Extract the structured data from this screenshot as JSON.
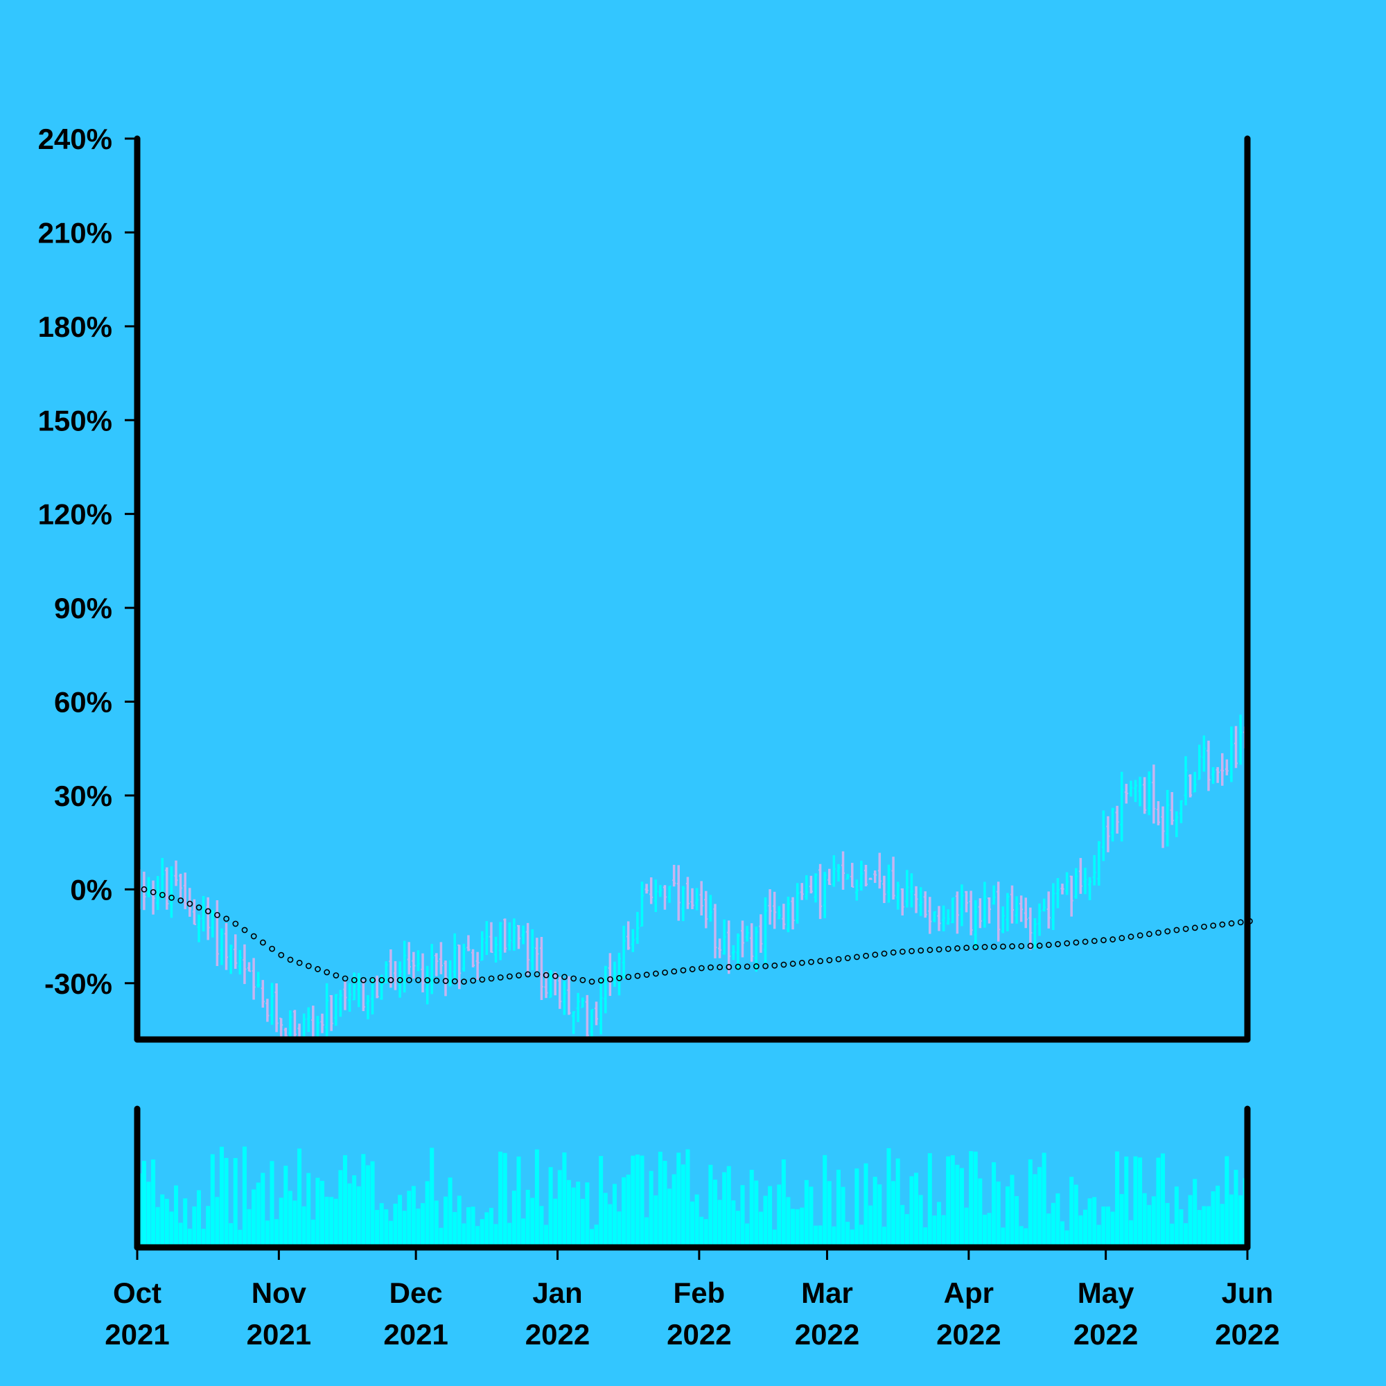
{
  "chart_data": {
    "type": "ohlc",
    "background_color": "#33c6ff",
    "border_color": "#000000",
    "up_color": "#00ffff",
    "down_color": "#c8b4f0",
    "volume_color": "#00ffff",
    "moving_average_color": "#000000",
    "y_axis": {
      "unit": "percent",
      "ylim": [
        -48,
        240
      ],
      "ticks": [
        -30,
        0,
        30,
        60,
        90,
        120,
        150,
        180,
        210,
        240
      ],
      "tick_labels": [
        "-30%",
        "0%",
        "30%",
        "60%",
        "90%",
        "120%",
        "150%",
        "180%",
        "210%",
        "240%"
      ]
    },
    "x_axis": {
      "range": [
        "2021-10-01",
        "2022-06-01"
      ],
      "ticks": [
        {
          "date": "2021-10-01",
          "month": "Oct",
          "year": "2021"
        },
        {
          "date": "2021-11-01",
          "month": "Nov",
          "year": "2021"
        },
        {
          "date": "2021-12-01",
          "month": "Dec",
          "year": "2021"
        },
        {
          "date": "2022-01-01",
          "month": "Jan",
          "year": "2022"
        },
        {
          "date": "2022-02-01",
          "month": "Feb",
          "year": "2022"
        },
        {
          "date": "2022-03-01",
          "month": "Mar",
          "year": "2022"
        },
        {
          "date": "2022-04-01",
          "month": "Apr",
          "year": "2022"
        },
        {
          "date": "2022-05-01",
          "month": "May",
          "year": "2022"
        },
        {
          "date": "2022-06-01",
          "month": "Jun",
          "year": "2022"
        }
      ]
    },
    "price_path": [
      {
        "date": "2021-10-01",
        "value": 2
      },
      {
        "date": "2021-10-10",
        "value": -2
      },
      {
        "date": "2021-10-20",
        "value": -18
      },
      {
        "date": "2021-10-28",
        "value": -38
      },
      {
        "date": "2021-11-05",
        "value": -45
      },
      {
        "date": "2021-11-15",
        "value": -38
      },
      {
        "date": "2021-11-25",
        "value": -28
      },
      {
        "date": "2021-12-05",
        "value": -25
      },
      {
        "date": "2021-12-15",
        "value": -18
      },
      {
        "date": "2021-12-22",
        "value": -14
      },
      {
        "date": "2022-01-01",
        "value": -35
      },
      {
        "date": "2022-01-07",
        "value": -42
      },
      {
        "date": "2022-01-14",
        "value": -20
      },
      {
        "date": "2022-01-22",
        "value": 2
      },
      {
        "date": "2022-02-01",
        "value": -10
      },
      {
        "date": "2022-02-10",
        "value": -20
      },
      {
        "date": "2022-02-20",
        "value": -5
      },
      {
        "date": "2022-03-01",
        "value": 2
      },
      {
        "date": "2022-03-10",
        "value": 6
      },
      {
        "date": "2022-03-20",
        "value": -5
      },
      {
        "date": "2022-04-01",
        "value": -8
      },
      {
        "date": "2022-04-15",
        "value": -8
      },
      {
        "date": "2022-04-25",
        "value": 0
      },
      {
        "date": "2022-05-01",
        "value": 22
      },
      {
        "date": "2022-05-08",
        "value": 32
      },
      {
        "date": "2022-05-14",
        "value": 22
      },
      {
        "date": "2022-05-20",
        "value": 38
      },
      {
        "date": "2022-06-01",
        "value": 48
      }
    ],
    "moving_average": [
      {
        "date": "2021-10-01",
        "value": 0
      },
      {
        "date": "2021-10-10",
        "value": -4
      },
      {
        "date": "2021-10-20",
        "value": -10
      },
      {
        "date": "2021-11-01",
        "value": -22
      },
      {
        "date": "2021-11-15",
        "value": -29
      },
      {
        "date": "2021-12-01",
        "value": -29
      },
      {
        "date": "2021-12-10",
        "value": -29.5
      },
      {
        "date": "2021-12-25",
        "value": -27
      },
      {
        "date": "2022-01-01",
        "value": -28
      },
      {
        "date": "2022-01-07",
        "value": -29.5
      },
      {
        "date": "2022-01-15",
        "value": -28
      },
      {
        "date": "2022-02-01",
        "value": -25
      },
      {
        "date": "2022-02-15",
        "value": -24.5
      },
      {
        "date": "2022-03-01",
        "value": -22.5
      },
      {
        "date": "2022-03-15",
        "value": -20
      },
      {
        "date": "2022-04-01",
        "value": -18.5
      },
      {
        "date": "2022-04-15",
        "value": -18
      },
      {
        "date": "2022-05-01",
        "value": -16
      },
      {
        "date": "2022-05-15",
        "value": -13
      },
      {
        "date": "2022-06-01",
        "value": -10
      }
    ],
    "volume_level": 0.5
  }
}
